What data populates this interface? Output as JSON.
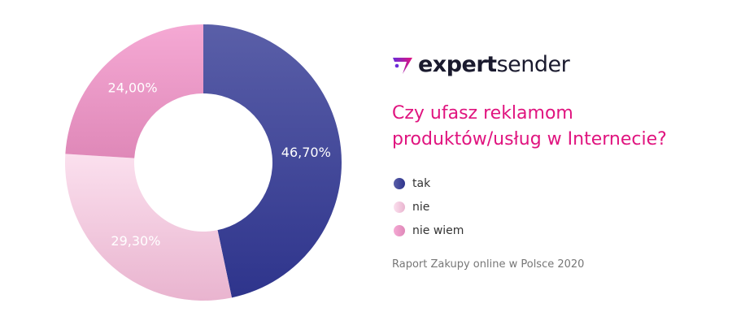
{
  "logo": {
    "text_bold": "expert",
    "text_regular": "sender"
  },
  "title_lines": [
    "Czy ufasz reklamom",
    "produktów/usług w Internecie?"
  ],
  "source": "Raport Zakupy online w Polsce 2020",
  "chart_data": {
    "type": "pie",
    "donut": true,
    "categories": [
      "tak",
      "nie",
      "nie wiem"
    ],
    "values": [
      46.7,
      29.3,
      24.0
    ],
    "data_labels": [
      "46,70%",
      "29,30%",
      "24,00%"
    ],
    "colors": [
      [
        "#5a5fa8",
        "#2e348c"
      ],
      [
        "#fbe0ee",
        "#e9b4cf"
      ],
      [
        "#f5a9d4",
        "#df88b8"
      ]
    ],
    "legend": "right",
    "start_angle": "top",
    "direction": "clockwise"
  }
}
